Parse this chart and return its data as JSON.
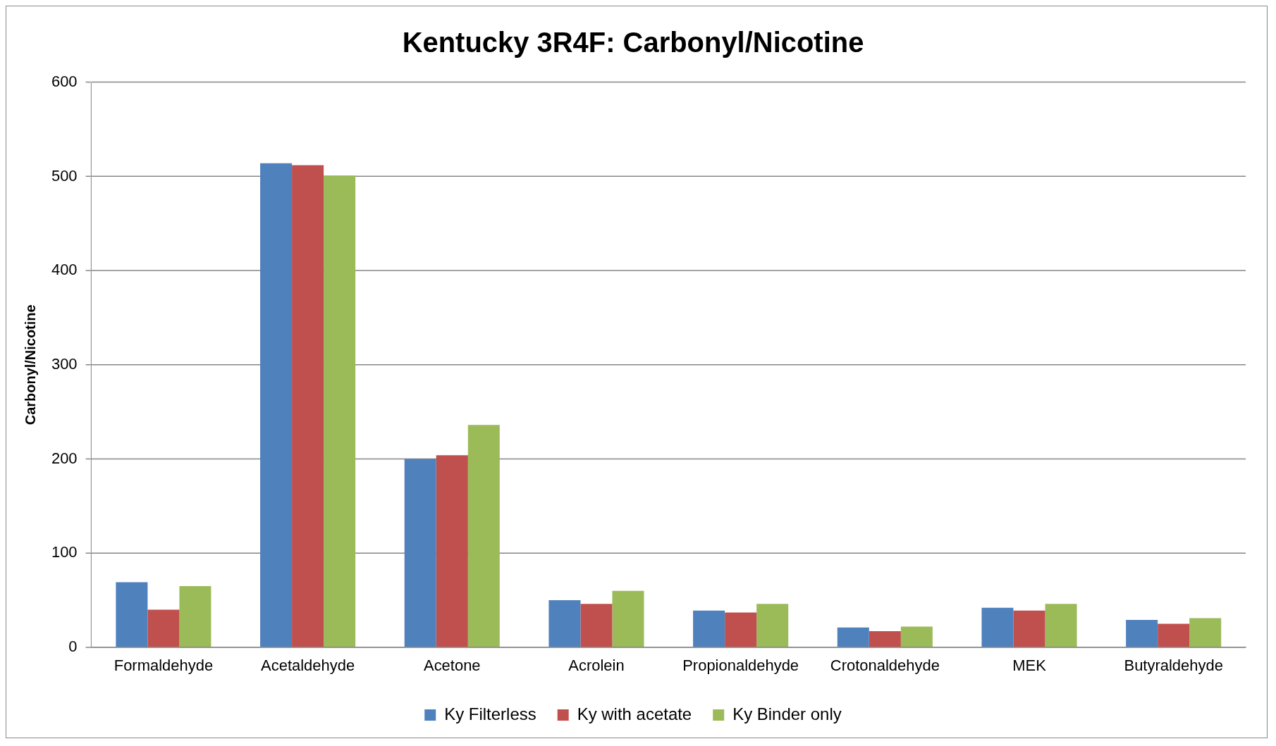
{
  "chart_data": {
    "type": "bar",
    "title": "Kentucky 3R4F: Carbonyl/Nicotine",
    "ylabel": "Carbonyl/Nicotine",
    "categories": [
      "Formaldehyde",
      "Acetaldehyde",
      "Acetone",
      "Acrolein",
      "Propionaldehyde",
      "Crotonaldehyde",
      "MEK",
      "Butyraldehyde"
    ],
    "series": [
      {
        "name": "Ky Filterless",
        "color": "#4f81bd",
        "values": [
          69,
          514,
          200,
          50,
          39,
          21,
          42,
          29
        ]
      },
      {
        "name": "Ky with acetate",
        "color": "#c0504d",
        "values": [
          40,
          512,
          204,
          46,
          37,
          17,
          39,
          25
        ]
      },
      {
        "name": "Ky Binder only",
        "color": "#9bbb59",
        "values": [
          65,
          501,
          236,
          60,
          46,
          22,
          46,
          31
        ]
      }
    ],
    "ylim": [
      0,
      600
    ],
    "yticks": [
      0,
      100,
      200,
      300,
      400,
      500,
      600
    ],
    "grid": "y",
    "legend": "bottom"
  }
}
